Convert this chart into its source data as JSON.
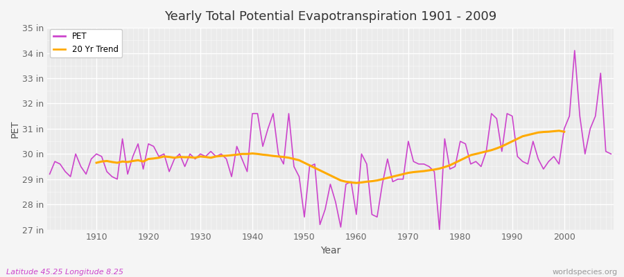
{
  "title": "Yearly Total Potential Evapotranspiration 1901 - 2009",
  "xlabel": "Year",
  "ylabel": "PET",
  "subtitle_left": "Latitude 45.25 Longitude 8.25",
  "subtitle_right": "worldspecies.org",
  "pet_color": "#cc44cc",
  "trend_color": "#ffaa00",
  "fig_bg_color": "#f5f5f5",
  "plot_bg_color": "#ebebeb",
  "ylim": [
    27,
    35
  ],
  "yticks": [
    27,
    28,
    29,
    30,
    31,
    32,
    33,
    34,
    35
  ],
  "ytick_labels": [
    "27 in",
    "28 in",
    "29 in",
    "30 in",
    "31 in",
    "32 in",
    "33 in",
    "34 in",
    "35 in"
  ],
  "years": [
    1901,
    1902,
    1903,
    1904,
    1905,
    1906,
    1907,
    1908,
    1909,
    1910,
    1911,
    1912,
    1913,
    1914,
    1915,
    1916,
    1917,
    1918,
    1919,
    1920,
    1921,
    1922,
    1923,
    1924,
    1925,
    1926,
    1927,
    1928,
    1929,
    1930,
    1931,
    1932,
    1933,
    1934,
    1935,
    1936,
    1937,
    1938,
    1939,
    1940,
    1941,
    1942,
    1943,
    1944,
    1945,
    1946,
    1947,
    1948,
    1949,
    1950,
    1951,
    1952,
    1953,
    1954,
    1955,
    1956,
    1957,
    1958,
    1959,
    1960,
    1961,
    1962,
    1963,
    1964,
    1965,
    1966,
    1967,
    1968,
    1969,
    1970,
    1971,
    1972,
    1973,
    1974,
    1975,
    1976,
    1977,
    1978,
    1979,
    1980,
    1981,
    1982,
    1983,
    1984,
    1985,
    1986,
    1987,
    1988,
    1989,
    1990,
    1991,
    1992,
    1993,
    1994,
    1995,
    1996,
    1997,
    1998,
    1999,
    2000,
    2001,
    2002,
    2003,
    2004,
    2005,
    2006,
    2007,
    2008,
    2009
  ],
  "pet_values": [
    29.2,
    29.7,
    29.6,
    29.3,
    29.1,
    30.0,
    29.5,
    29.2,
    29.8,
    30.0,
    29.9,
    29.3,
    29.1,
    29.0,
    30.6,
    29.2,
    29.9,
    30.4,
    29.4,
    30.4,
    30.3,
    29.9,
    30.0,
    29.3,
    29.8,
    30.0,
    29.5,
    30.0,
    29.8,
    30.0,
    29.9,
    30.1,
    29.9,
    30.0,
    29.8,
    29.1,
    30.3,
    29.8,
    29.3,
    31.6,
    31.6,
    30.3,
    31.0,
    31.6,
    30.0,
    29.6,
    31.6,
    29.5,
    29.1,
    27.5,
    29.5,
    29.6,
    27.2,
    27.8,
    28.8,
    28.1,
    27.1,
    28.8,
    28.9,
    27.6,
    30.0,
    29.6,
    27.6,
    27.5,
    28.8,
    29.8,
    28.9,
    29.0,
    29.0,
    30.5,
    29.7,
    29.6,
    29.6,
    29.5,
    29.3,
    27.0,
    30.6,
    29.4,
    29.5,
    30.5,
    30.4,
    29.6,
    29.7,
    29.5,
    30.1,
    31.6,
    31.4,
    30.1,
    31.6,
    31.5,
    29.9,
    29.7,
    29.6,
    30.5,
    29.8,
    29.4,
    29.7,
    29.9,
    29.6,
    31.0,
    31.5,
    34.1,
    31.5,
    30.0,
    31.0,
    31.5,
    33.2,
    30.1,
    30.0
  ],
  "trend_years": [
    1910,
    1911,
    1912,
    1913,
    1914,
    1915,
    1916,
    1917,
    1918,
    1919,
    1920,
    1921,
    1922,
    1923,
    1924,
    1925,
    1926,
    1927,
    1928,
    1929,
    1930,
    1931,
    1932,
    1933,
    1934,
    1935,
    1936,
    1937,
    1938,
    1939,
    1940,
    1941,
    1942,
    1943,
    1944,
    1945,
    1946,
    1947,
    1948,
    1949,
    1950,
    1951,
    1952,
    1953,
    1954,
    1955,
    1956,
    1957,
    1958,
    1959,
    1960,
    1961,
    1962,
    1963,
    1964,
    1965,
    1966,
    1967,
    1968,
    1969,
    1970,
    1971,
    1972,
    1973,
    1974,
    1975,
    1976,
    1977,
    1978,
    1979,
    1980,
    1981,
    1982,
    1983,
    1984,
    1985,
    1986,
    1987,
    1988,
    1989,
    1990,
    1991,
    1992,
    1993,
    1994,
    1995,
    1996,
    1997,
    1998,
    1999,
    2000
  ],
  "trend_values": [
    29.65,
    29.7,
    29.72,
    29.68,
    29.65,
    29.7,
    29.68,
    29.72,
    29.75,
    29.7,
    29.8,
    29.82,
    29.85,
    29.9,
    29.88,
    29.85,
    29.88,
    29.87,
    29.87,
    29.85,
    29.9,
    29.88,
    29.85,
    29.9,
    29.92,
    29.93,
    29.95,
    29.97,
    30.0,
    30.0,
    30.02,
    30.0,
    29.97,
    29.95,
    29.92,
    29.9,
    29.88,
    29.85,
    29.8,
    29.75,
    29.65,
    29.55,
    29.45,
    29.35,
    29.25,
    29.15,
    29.05,
    28.95,
    28.9,
    28.87,
    28.85,
    28.87,
    28.9,
    28.92,
    28.95,
    29.0,
    29.05,
    29.1,
    29.15,
    29.2,
    29.25,
    29.28,
    29.3,
    29.32,
    29.35,
    29.38,
    29.42,
    29.48,
    29.55,
    29.65,
    29.75,
    29.85,
    29.95,
    30.0,
    30.05,
    30.1,
    30.15,
    30.22,
    30.3,
    30.4,
    30.5,
    30.6,
    30.7,
    30.75,
    30.8,
    30.85,
    30.87,
    30.88,
    30.9,
    30.92,
    30.88
  ]
}
